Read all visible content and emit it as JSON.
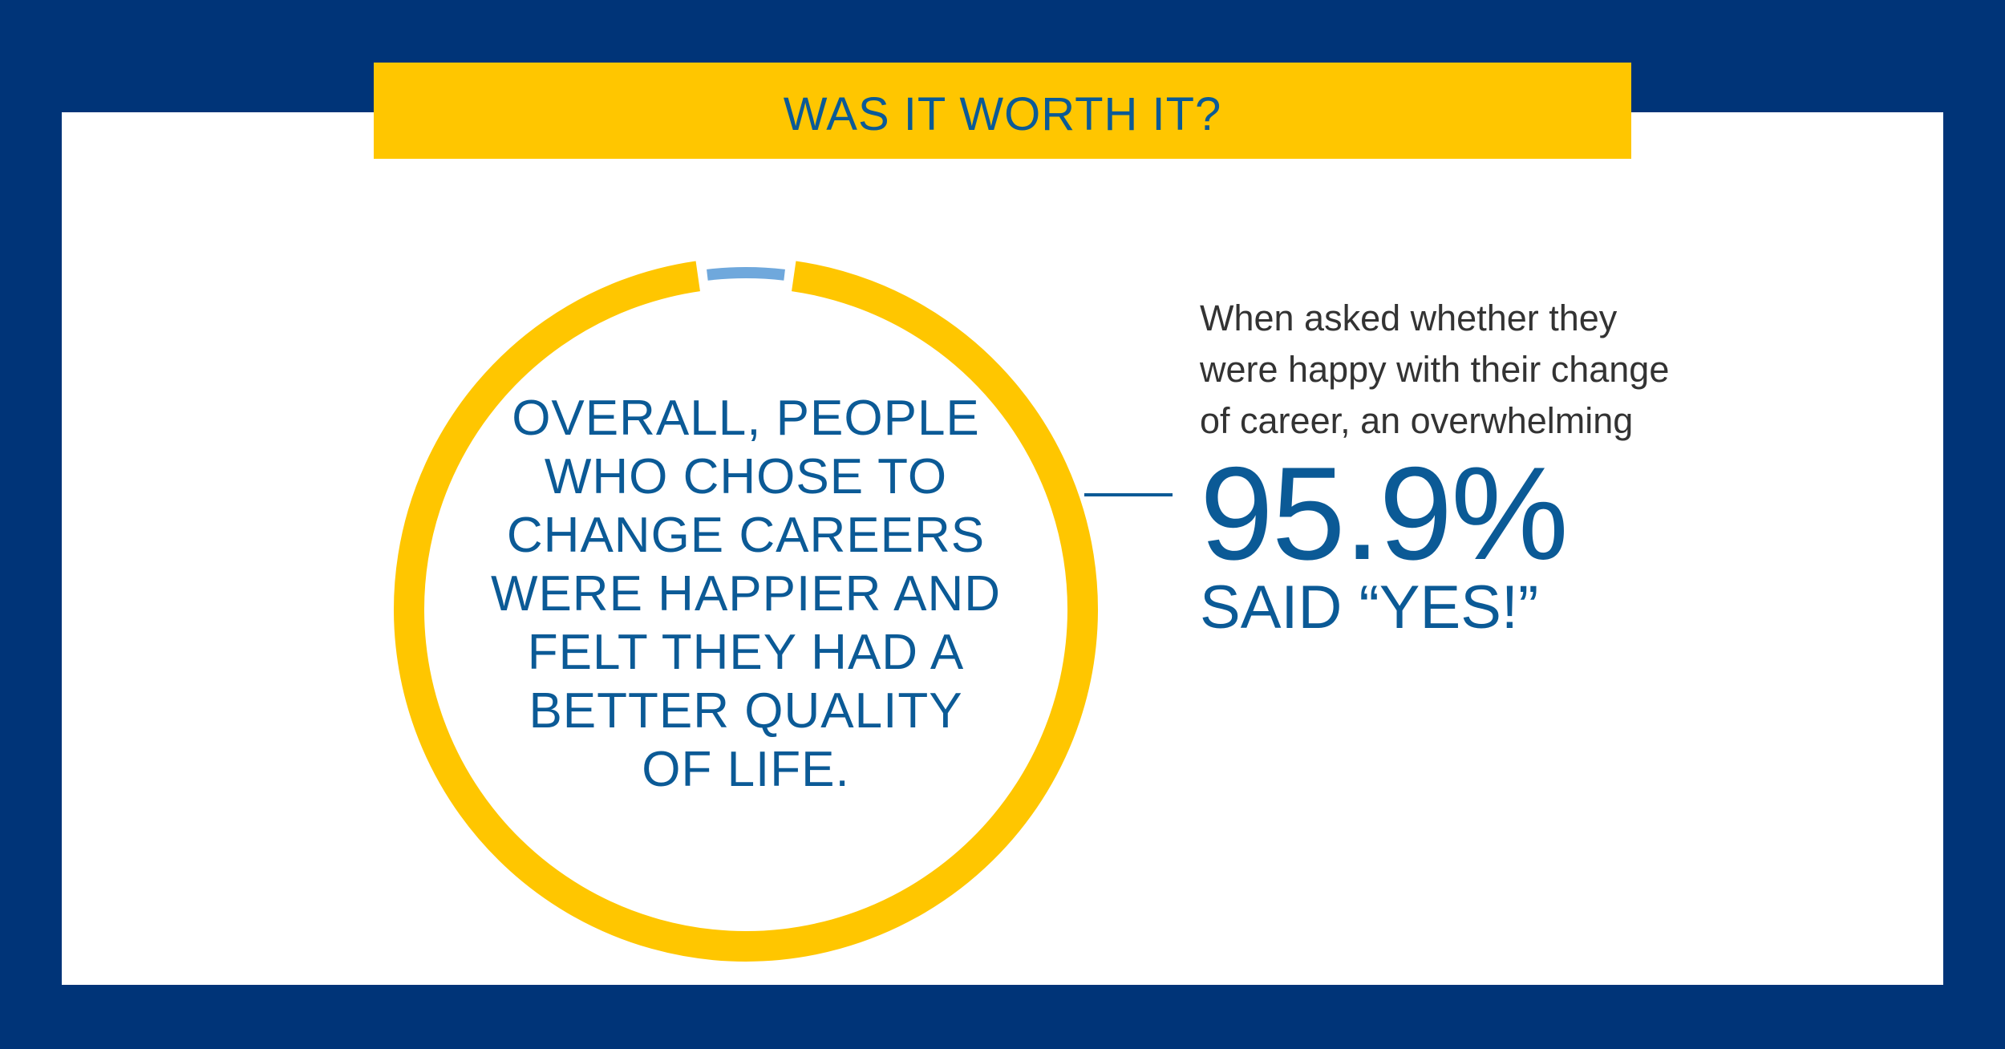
{
  "banner": {
    "title": "WAS IT WORTH IT?"
  },
  "center_text": {
    "lines": [
      "OVERALL, PEOPLE",
      "WHO CHOSE TO",
      "CHANGE CAREERS",
      "WERE HAPPIER AND",
      "FELT THEY HAD A",
      "BETTER QUALITY",
      "OF LIFE."
    ]
  },
  "callout": {
    "intro_lines": [
      "When asked whether they",
      "were happy with their change",
      "of career, an overwhelming"
    ],
    "stat": "95.9%",
    "said": "SAID “YES!”"
  },
  "colors": {
    "background": "#003478",
    "panel": "#ffffff",
    "accent_yellow": "#ffc600",
    "accent_blue": "#6fa8dc",
    "text_blue": "#0b5a96",
    "text_dark": "#333333"
  },
  "chart_data": {
    "type": "pie",
    "title": "",
    "slices": [
      {
        "label": "",
        "value": 95.9,
        "color": "#ffc600"
      },
      {
        "label": "",
        "value": 4.1,
        "color": "#6fa8dc"
      }
    ]
  }
}
